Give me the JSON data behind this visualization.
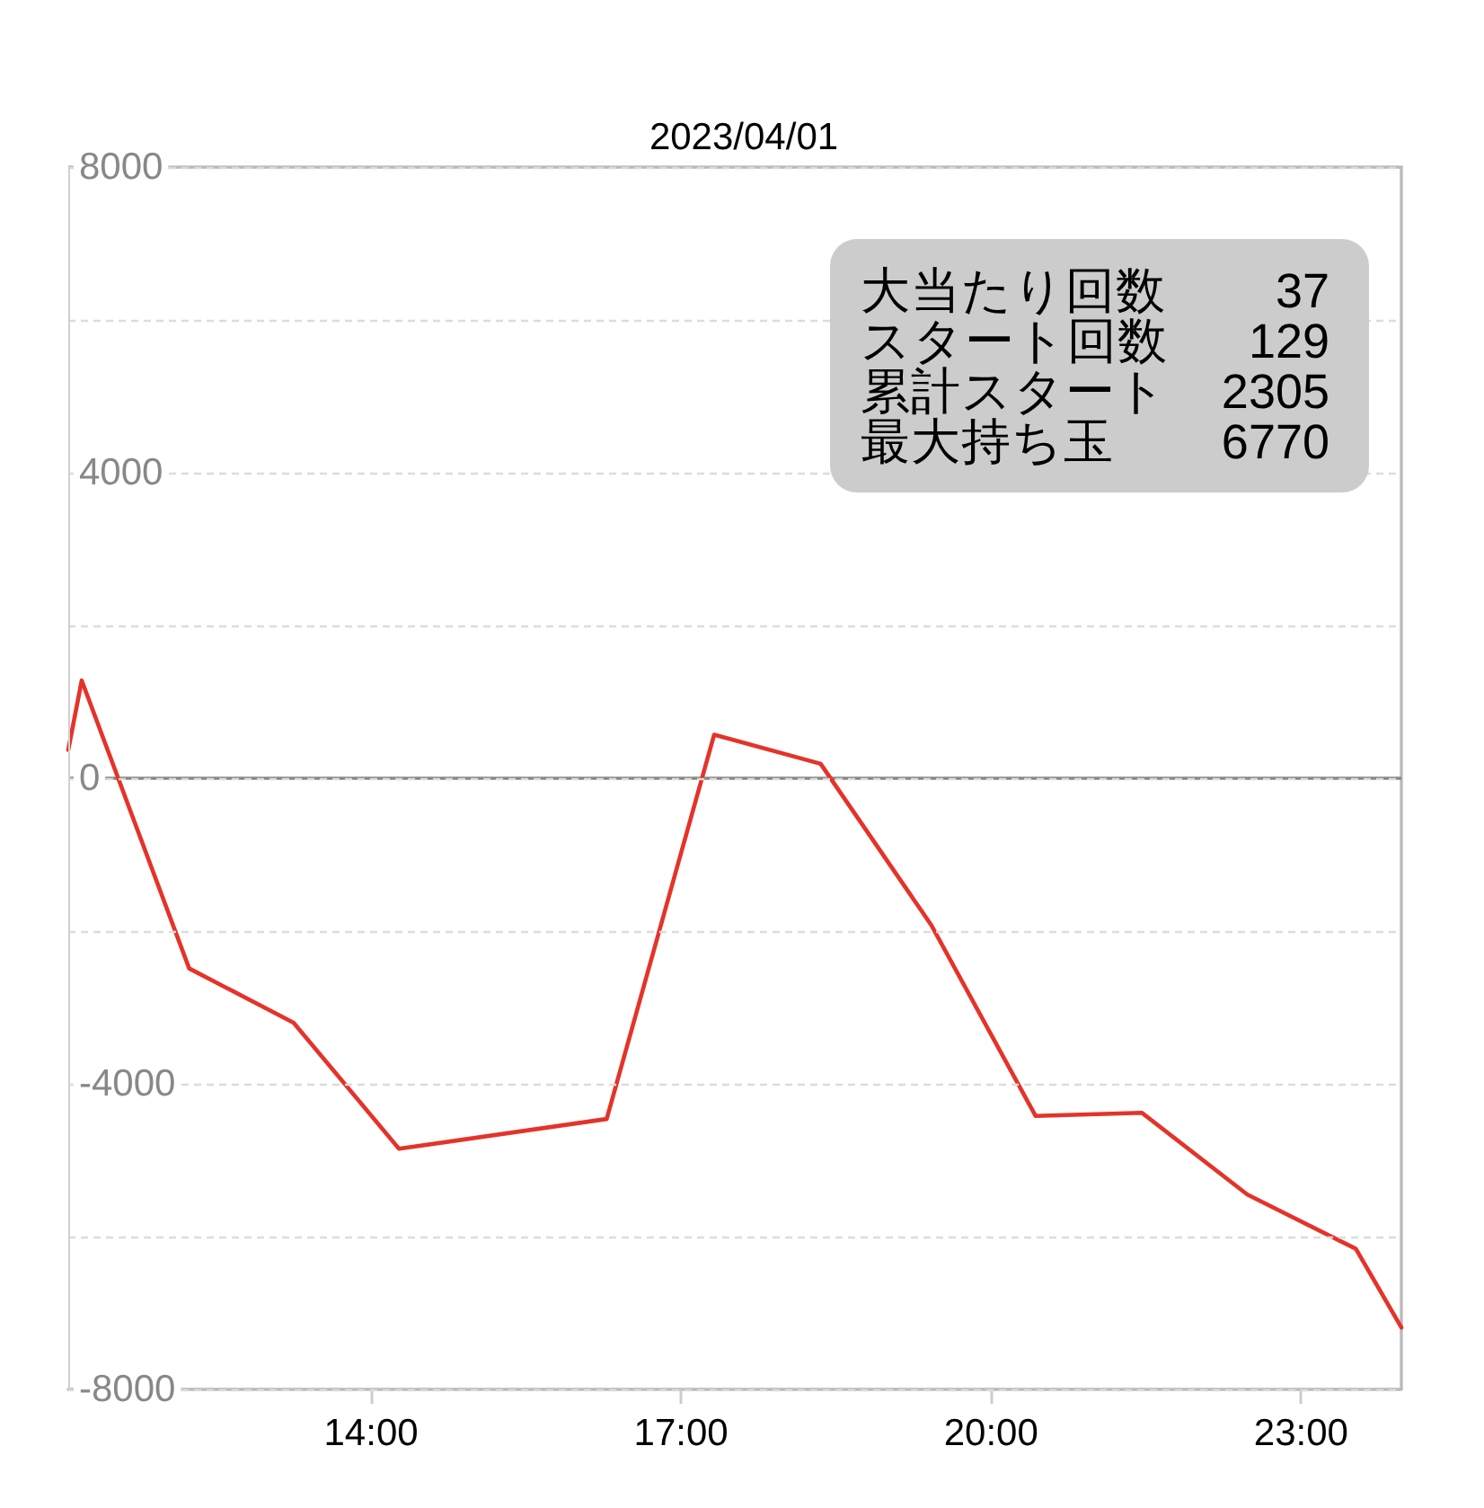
{
  "chart_data": {
    "type": "line",
    "title": "2023/04/01",
    "x": [
      11.07,
      11.2,
      12.24,
      13.25,
      14.27,
      16.28,
      17.32,
      18.35,
      19.42,
      20.43,
      21.46,
      22.48,
      23.53,
      23.97
    ],
    "values": [
      370,
      1280,
      -2490,
      -3200,
      -4850,
      -4460,
      570,
      190,
      -1920,
      -4420,
      -4380,
      -5450,
      -6160,
      -7190
    ],
    "color": "#e5332a",
    "xlim": [
      11.07,
      23.97
    ],
    "xticks": [
      {
        "value": 14,
        "label": "14:00"
      },
      {
        "value": 17,
        "label": "17:00"
      },
      {
        "value": 20,
        "label": "20:00"
      },
      {
        "value": 23,
        "label": "23:00"
      }
    ],
    "ylim": [
      -8000,
      8000
    ],
    "yticks": [
      {
        "value": -8000,
        "label": "-8000"
      },
      {
        "value": -6000,
        "label": null
      },
      {
        "value": -4000,
        "label": "-4000"
      },
      {
        "value": -2000,
        "label": null
      },
      {
        "value": 0,
        "label": "0"
      },
      {
        "value": 2000,
        "label": null
      },
      {
        "value": 4000,
        "label": "4000"
      },
      {
        "value": 6000,
        "label": null
      },
      {
        "value": 8000,
        "label": "8000"
      }
    ],
    "grid": "y",
    "marker": "none",
    "line_style": "solid",
    "ref_lines": [
      {
        "axis": "y",
        "value": 0,
        "color": "#888888"
      }
    ],
    "annotations": [
      "大当たり回数 37",
      "スタート回数 129",
      "累計スタート 2305",
      "最大持ち玉 6770"
    ]
  }
}
